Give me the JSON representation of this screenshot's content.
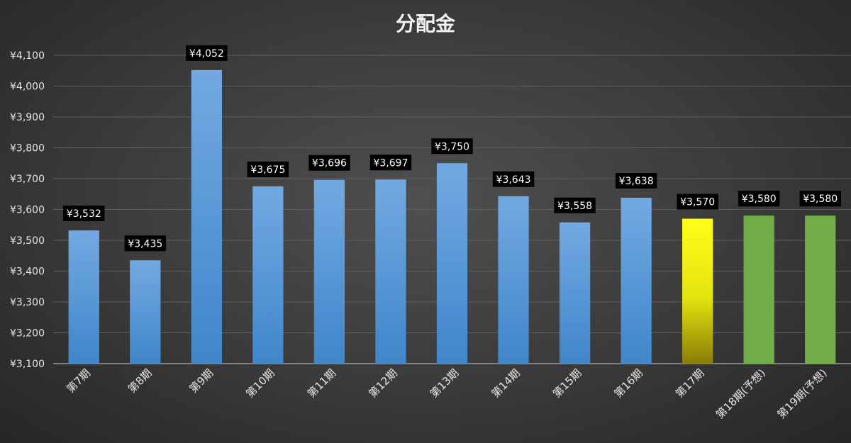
{
  "chart_data": {
    "type": "bar",
    "title": "分配金",
    "categories": [
      "第7期",
      "第8期",
      "第9期",
      "第10期",
      "第11期",
      "第12期",
      "第13期",
      "第14期",
      "第15期",
      "第16期",
      "第17期",
      "第18期(予想)",
      "第19期(予想)"
    ],
    "values": [
      3532,
      3435,
      4052,
      3675,
      3696,
      3697,
      3750,
      3643,
      3558,
      3638,
      3570,
      3580,
      3580
    ],
    "data_labels": [
      "¥3,532",
      "¥3,435",
      "¥4,052",
      "¥3,675",
      "¥3,696",
      "¥3,697",
      "¥3,750",
      "¥3,643",
      "¥3,558",
      "¥3,638",
      "¥3,570",
      "¥3,580",
      "¥3,580"
    ],
    "bar_colors": [
      "blue",
      "blue",
      "blue",
      "blue",
      "blue",
      "blue",
      "blue",
      "blue",
      "blue",
      "blue",
      "yellow",
      "green",
      "green"
    ],
    "ylim": [
      3100,
      4100
    ],
    "yticks": [
      3100,
      3200,
      3300,
      3400,
      3500,
      3600,
      3700,
      3800,
      3900,
      4000,
      4100
    ],
    "ytick_labels": [
      "¥3,100",
      "¥3,200",
      "¥3,300",
      "¥3,400",
      "¥3,500",
      "¥3,600",
      "¥3,700",
      "¥3,800",
      "¥3,900",
      "¥4,000",
      "¥4,100"
    ],
    "xlabel": "",
    "ylabel": "",
    "grid": true,
    "legend": false,
    "colors": {
      "blue_top": "#73a9e2",
      "blue_bottom": "#3f86cb",
      "yellow_top": "#ffff1a",
      "yellow_bottom": "#8a7c08",
      "green": "#70ad47",
      "label_bg": "#000000",
      "label_text": "#ffffff"
    }
  }
}
